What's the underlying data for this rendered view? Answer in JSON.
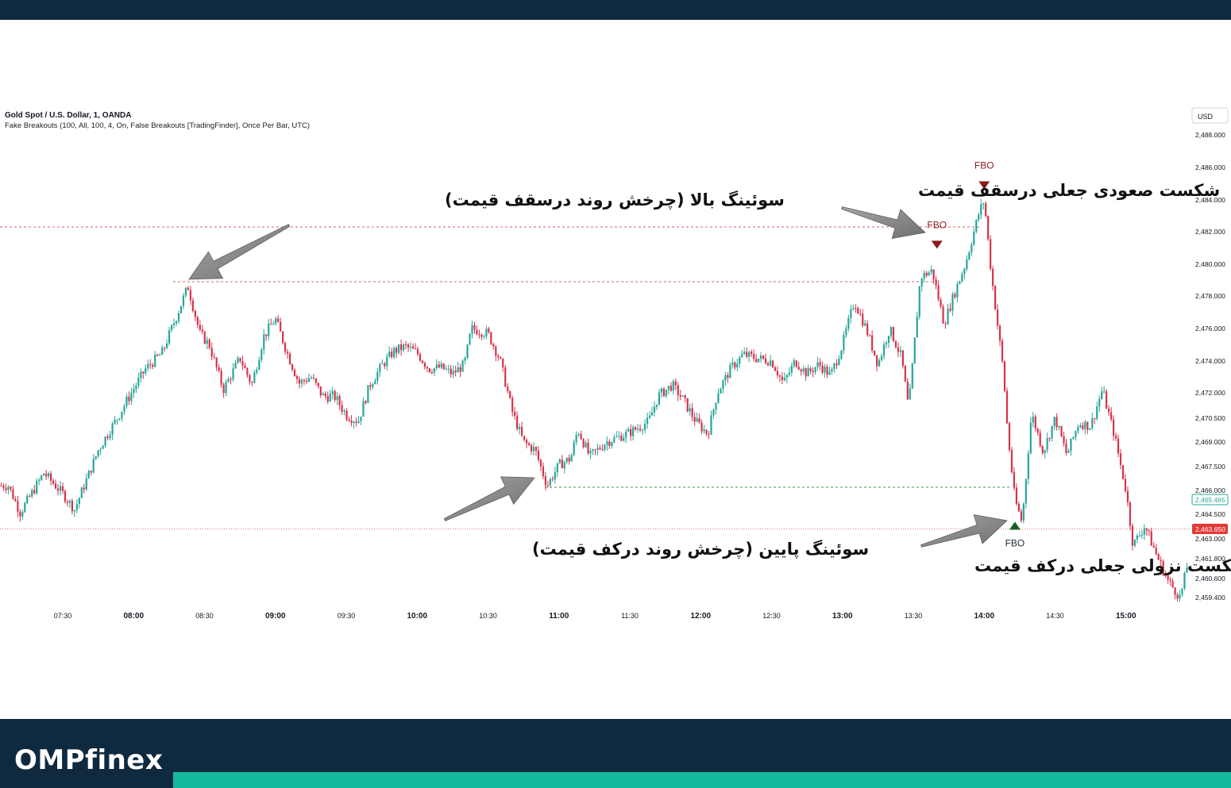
{
  "brand": {
    "name": "OMPfinex"
  },
  "header": {
    "symbol": "Gold Spot / U.S. Dollar, 1, OANDA",
    "indicator": "Fake Breakouts (100, All, 100, 4, On, False Breakouts [TradingFinder], Once Per Bar, UTC)"
  },
  "colors": {
    "frame": "#0f2a3f",
    "accent": "#14b89c",
    "up_candle": "#26a69a",
    "down_candle": "#d5334b",
    "bearish_marker": "#8b1a1a",
    "bullish_marker": "#1b5e20",
    "swing_high_line": "#c0504d",
    "swing_low_line": "#2e7d32",
    "last_price": "#e53935"
  },
  "chart_data": {
    "type": "candlestick",
    "title": "Gold Spot / U.S. Dollar, 1, OANDA",
    "currency": "USD",
    "y_axis": {
      "ticks": [
        "2,488.000",
        "2,486.000",
        "2,484.000",
        "2,482.000",
        "2,480.000",
        "2,478.000",
        "2,476.000",
        "2,474.000",
        "2,472.000",
        "2,470.500",
        "2,469.000",
        "2,467.500",
        "2,466.000",
        "2,464.500",
        "2,463.000",
        "2,461.800",
        "2,460.600",
        "2,459.400"
      ],
      "range": [
        2458.9,
        2488.6
      ]
    },
    "x_axis": {
      "ticks": [
        "07:30",
        "08:00",
        "08:30",
        "09:00",
        "09:30",
        "10:00",
        "10:30",
        "11:00",
        "11:30",
        "12:00",
        "12:30",
        "13:00",
        "13:30",
        "14:00",
        "14:30",
        "15:00"
      ],
      "bold": [
        "08:00",
        "09:00",
        "10:00",
        "11:00",
        "12:00",
        "13:00",
        "14:00",
        "15:00"
      ]
    },
    "price_labels": {
      "current": "2,465.465",
      "last": "2,463.650"
    },
    "levels": [
      {
        "name": "upper-breakout-level",
        "value": 2482.3
      },
      {
        "name": "swing-high",
        "value": 2478.9
      },
      {
        "name": "swing-low",
        "value": 2466.2
      },
      {
        "name": "lower-breakout-level",
        "value": 2463.6
      }
    ],
    "signals": [
      {
        "label": "FBO",
        "time": "13:40",
        "direction": "down",
        "value": 2481.2
      },
      {
        "label": "FBO",
        "time": "14:00",
        "direction": "down",
        "value": 2484.9
      },
      {
        "label": "FBO",
        "time": "14:13",
        "direction": "up",
        "value": 2463.8
      }
    ],
    "path": [
      {
        "time": "07:07",
        "close": 2466.3
      },
      {
        "time": "07:12",
        "close": 2464.6
      },
      {
        "time": "07:22",
        "close": 2467.1
      },
      {
        "time": "07:30",
        "close": 2465.8
      },
      {
        "time": "07:35",
        "close": 2464.8
      },
      {
        "time": "07:45",
        "close": 2468.5
      },
      {
        "time": "07:55",
        "close": 2471.0
      },
      {
        "time": "08:05",
        "close": 2473.5
      },
      {
        "time": "08:12",
        "close": 2474.5
      },
      {
        "time": "08:18",
        "close": 2476.7
      },
      {
        "time": "08:23",
        "close": 2478.6
      },
      {
        "time": "08:28",
        "close": 2475.7
      },
      {
        "time": "08:32",
        "close": 2475.0
      },
      {
        "time": "08:38",
        "close": 2472.2
      },
      {
        "time": "08:45",
        "close": 2474.2
      },
      {
        "time": "08:50",
        "close": 2472.5
      },
      {
        "time": "08:55",
        "close": 2475.5
      },
      {
        "time": "09:00",
        "close": 2476.6
      },
      {
        "time": "09:05",
        "close": 2474.5
      },
      {
        "time": "09:10",
        "close": 2472.6
      },
      {
        "time": "09:15",
        "close": 2473.0
      },
      {
        "time": "09:20",
        "close": 2471.8
      },
      {
        "time": "09:25",
        "close": 2471.8
      },
      {
        "time": "09:30",
        "close": 2470.7
      },
      {
        "time": "09:35",
        "close": 2470.3
      },
      {
        "time": "09:40",
        "close": 2472.5
      },
      {
        "time": "09:45",
        "close": 2473.7
      },
      {
        "time": "09:50",
        "close": 2474.6
      },
      {
        "time": "09:55",
        "close": 2474.9
      },
      {
        "time": "10:00",
        "close": 2474.5
      },
      {
        "time": "10:05",
        "close": 2473.5
      },
      {
        "time": "10:10",
        "close": 2473.6
      },
      {
        "time": "10:15",
        "close": 2473.2
      },
      {
        "time": "10:20",
        "close": 2473.8
      },
      {
        "time": "10:23",
        "close": 2476.0
      },
      {
        "time": "10:30",
        "close": 2475.7
      },
      {
        "time": "10:35",
        "close": 2474.1
      },
      {
        "time": "10:40",
        "close": 2471.0
      },
      {
        "time": "10:45",
        "close": 2469.0
      },
      {
        "time": "10:50",
        "close": 2468.5
      },
      {
        "time": "10:55",
        "close": 2466.3
      },
      {
        "time": "11:00",
        "close": 2467.6
      },
      {
        "time": "11:05",
        "close": 2468.0
      },
      {
        "time": "11:08",
        "close": 2469.8
      },
      {
        "time": "11:13",
        "close": 2468.1
      },
      {
        "time": "11:20",
        "close": 2469.0
      },
      {
        "time": "11:30",
        "close": 2469.6
      },
      {
        "time": "11:38",
        "close": 2470.3
      },
      {
        "time": "11:42",
        "close": 2471.8
      },
      {
        "time": "11:48",
        "close": 2472.5
      },
      {
        "time": "11:53",
        "close": 2471.5
      },
      {
        "time": "11:58",
        "close": 2470.3
      },
      {
        "time": "12:03",
        "close": 2469.5
      },
      {
        "time": "12:07",
        "close": 2472.0
      },
      {
        "time": "12:13",
        "close": 2473.6
      },
      {
        "time": "12:18",
        "close": 2474.4
      },
      {
        "time": "12:23",
        "close": 2474.2
      },
      {
        "time": "12:30",
        "close": 2474.0
      },
      {
        "time": "12:35",
        "close": 2472.6
      },
      {
        "time": "12:40",
        "close": 2474.0
      },
      {
        "time": "12:45",
        "close": 2473.2
      },
      {
        "time": "12:50",
        "close": 2473.8
      },
      {
        "time": "12:55",
        "close": 2473.1
      },
      {
        "time": "13:00",
        "close": 2475.0
      },
      {
        "time": "13:05",
        "close": 2477.7
      },
      {
        "time": "13:10",
        "close": 2476.0
      },
      {
        "time": "13:15",
        "close": 2473.8
      },
      {
        "time": "13:20",
        "close": 2476.0
      },
      {
        "time": "13:25",
        "close": 2474.2
      },
      {
        "time": "13:28",
        "close": 2471.0
      },
      {
        "time": "13:33",
        "close": 2479.2
      },
      {
        "time": "13:38",
        "close": 2479.6
      },
      {
        "time": "13:43",
        "close": 2476.3
      },
      {
        "time": "13:47",
        "close": 2478.0
      },
      {
        "time": "13:52",
        "close": 2480.0
      },
      {
        "time": "13:58",
        "close": 2483.3
      },
      {
        "time": "14:00",
        "close": 2484.0
      },
      {
        "time": "14:03",
        "close": 2479.4
      },
      {
        "time": "14:05",
        "close": 2477.0
      },
      {
        "time": "14:08",
        "close": 2473.5
      },
      {
        "time": "14:10",
        "close": 2469.5
      },
      {
        "time": "14:13",
        "close": 2465.4
      },
      {
        "time": "14:16",
        "close": 2464.0
      },
      {
        "time": "14:20",
        "close": 2470.8
      },
      {
        "time": "14:25",
        "close": 2468.4
      },
      {
        "time": "14:30",
        "close": 2470.5
      },
      {
        "time": "14:35",
        "close": 2468.2
      },
      {
        "time": "14:40",
        "close": 2470.2
      },
      {
        "time": "14:45",
        "close": 2470.0
      },
      {
        "time": "14:50",
        "close": 2472.2
      },
      {
        "time": "14:55",
        "close": 2469.5
      },
      {
        "time": "15:00",
        "close": 2466.0
      },
      {
        "time": "15:03",
        "close": 2462.6
      },
      {
        "time": "15:08",
        "close": 2463.8
      },
      {
        "time": "15:13",
        "close": 2462.0
      },
      {
        "time": "15:18",
        "close": 2460.4
      },
      {
        "time": "15:23",
        "close": 2459.4
      },
      {
        "time": "15:28",
        "close": 2462.8
      },
      {
        "time": "15:32",
        "close": 2465.4
      }
    ],
    "annotations": [
      "سوئینگ بالا (چرخش روند درسقف قیمت)",
      "شکست صعودی جعلی درسقف قیمت",
      "سوئینگ پایین (چرخش روند درکف قیمت)",
      "شکست نزولی جعلی درکف قیمت"
    ]
  }
}
